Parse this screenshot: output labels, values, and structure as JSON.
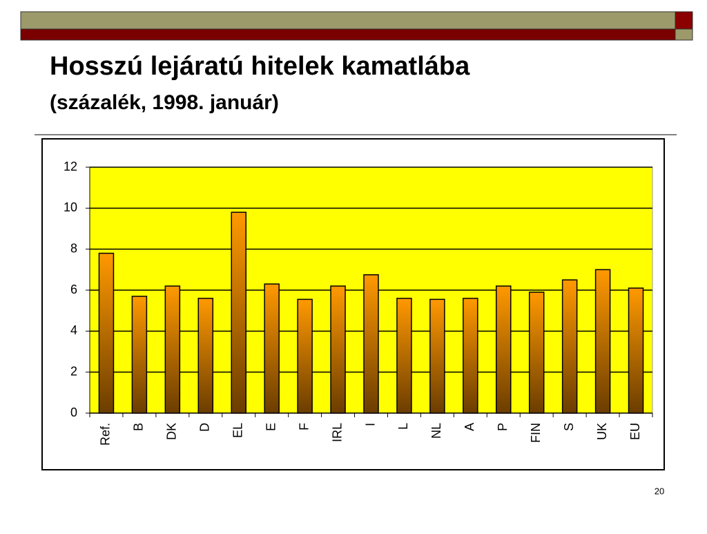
{
  "chart_data": {
    "type": "bar",
    "title": "Hosszú lejáratú hitelek kamatlába",
    "subtitle": "(százalék, 1998. január)",
    "categories": [
      "Ref.",
      "B",
      "DK",
      "D",
      "EL",
      "E",
      "F",
      "IRL",
      "I",
      "L",
      "NL",
      "A",
      "P",
      "FIN",
      "S",
      "UK",
      "EU"
    ],
    "values": [
      7.8,
      5.7,
      6.2,
      5.6,
      9.8,
      6.3,
      5.55,
      6.2,
      6.75,
      5.6,
      5.55,
      5.6,
      6.2,
      5.9,
      6.5,
      7.0,
      6.1
    ],
    "color": "#ff9900",
    "ylim": [
      0,
      12
    ],
    "yticks": [
      0,
      2,
      4,
      6,
      8,
      10,
      12
    ],
    "grid": true
  },
  "slide": {
    "page_number": "20"
  }
}
